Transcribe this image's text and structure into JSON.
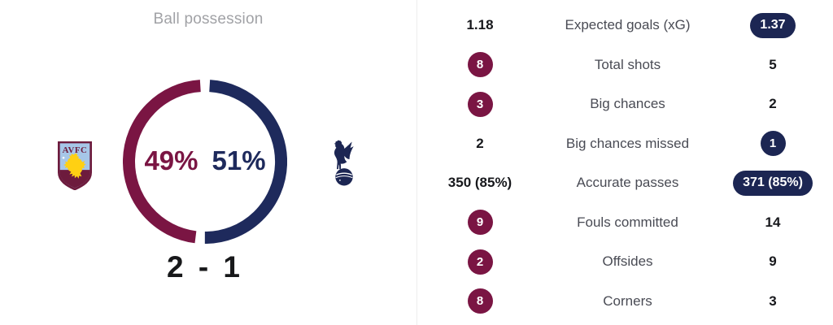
{
  "colors": {
    "claret": "#7a1543",
    "navy": "#1c2653",
    "donut_navy": "#1e2a5c",
    "label_gray": "#494b54",
    "value_black": "#17181c",
    "title_gray": "#a1a2a6",
    "divider": "#ededed",
    "crest_blue": "#a6c6e8",
    "crest_claret": "#6d1b3d",
    "lion_yellow": "#ffd013"
  },
  "possession": {
    "title": "Ball possession",
    "home_pct_label": "49%",
    "away_pct_label": "51%",
    "score": "2 - 1",
    "home_logo_text": "AVFC",
    "home_logo_icon": "aston-villa-crest-icon",
    "away_logo_icon": "tottenham-cockerel-icon"
  },
  "stats": {
    "rows": [
      {
        "label": "Expected goals (xG)",
        "home": "1.18",
        "away": "1.37",
        "home_style": "plain",
        "away_style": "pill-navy"
      },
      {
        "label": "Total shots",
        "home": "8",
        "away": "5",
        "home_style": "circle-claret",
        "away_style": "plain"
      },
      {
        "label": "Big chances",
        "home": "3",
        "away": "2",
        "home_style": "circle-claret",
        "away_style": "plain"
      },
      {
        "label": "Big chances missed",
        "home": "2",
        "away": "1",
        "home_style": "plain",
        "away_style": "circle-navy"
      },
      {
        "label": "Accurate passes",
        "home": "350 (85%)",
        "away": "371 (85%)",
        "home_style": "plain",
        "away_style": "pill-navy"
      },
      {
        "label": "Fouls committed",
        "home": "9",
        "away": "14",
        "home_style": "circle-claret",
        "away_style": "plain"
      },
      {
        "label": "Offsides",
        "home": "2",
        "away": "9",
        "home_style": "circle-claret",
        "away_style": "plain"
      },
      {
        "label": "Corners",
        "home": "8",
        "away": "3",
        "home_style": "circle-claret",
        "away_style": "plain"
      }
    ]
  },
  "chart_data": [
    {
      "type": "pie",
      "title": "Ball possession",
      "labels": [
        "home",
        "away"
      ],
      "values": [
        49,
        51
      ],
      "colors": [
        "#7a1543",
        "#1e2a5c"
      ],
      "center_labels": [
        "49%",
        "51%"
      ],
      "annotation": "2 - 1",
      "style": "donut, gaps at segment boundaries, labels inside ring"
    },
    {
      "type": "table",
      "columns": [
        "home",
        "stat",
        "away"
      ],
      "rows": [
        [
          "1.18",
          "Expected goals (xG)",
          "1.37"
        ],
        [
          "8",
          "Total shots",
          "5"
        ],
        [
          "3",
          "Big chances",
          "2"
        ],
        [
          "2",
          "Big chances missed",
          "1"
        ],
        [
          "350 (85%)",
          "Accurate passes",
          "371 (85%)"
        ],
        [
          "9",
          "Fouls committed",
          "14"
        ],
        [
          "2",
          "Offsides",
          "9"
        ],
        [
          "8",
          "Corners",
          "3"
        ]
      ],
      "highlight": "better value shown in claret (home) circle or navy (away) circle/pill"
    }
  ]
}
